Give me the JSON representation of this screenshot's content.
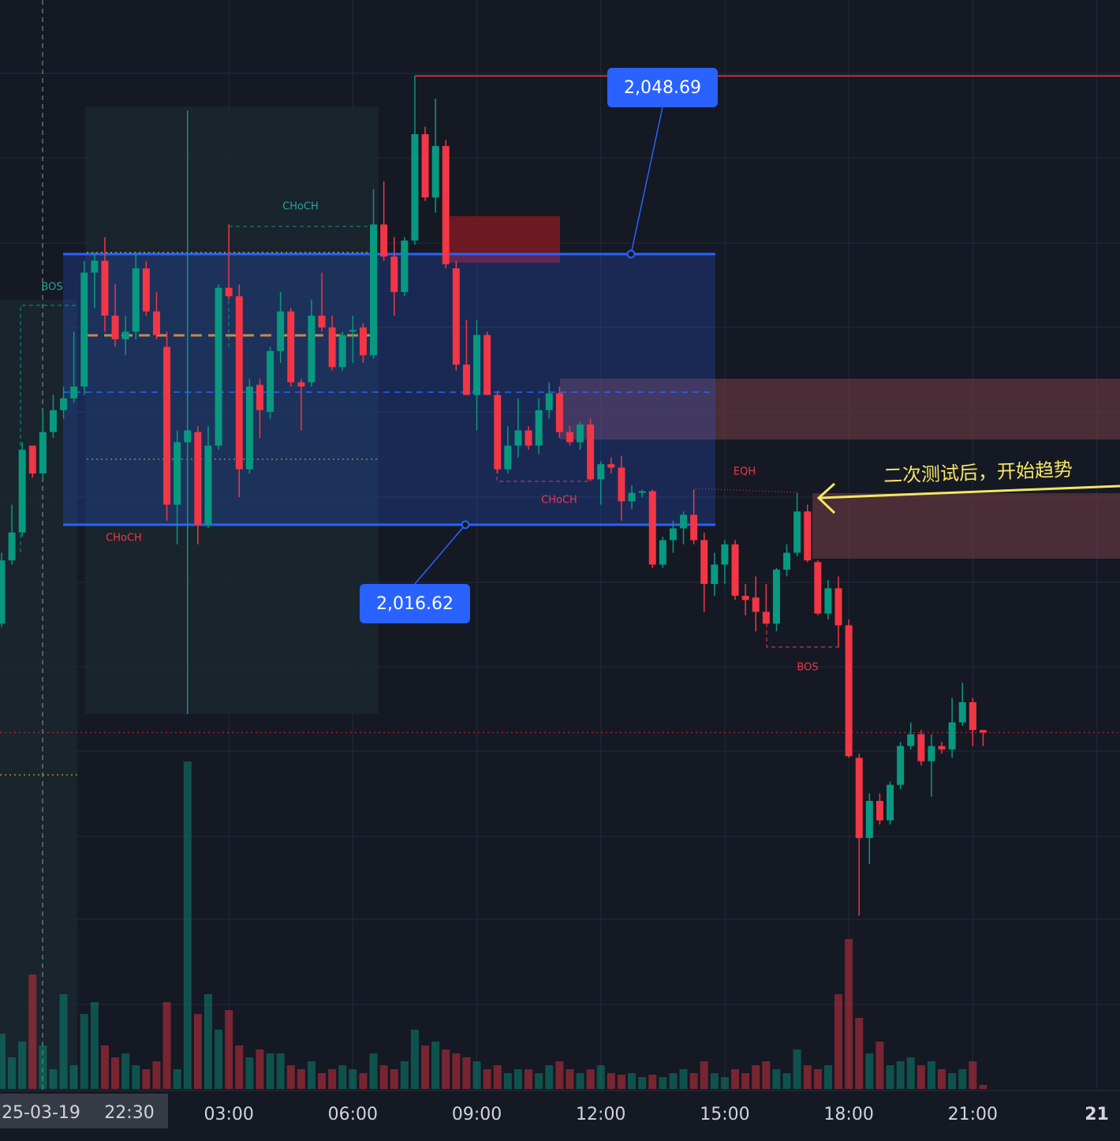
{
  "chart_data": {
    "type": "candlestick",
    "ohlc": [
      [
        2004.9,
        2013.3,
        2004.5,
        2012.4
      ],
      [
        2012.4,
        2019.0,
        2011.9,
        2015.7
      ],
      [
        2015.7,
        2026.4,
        2015.2,
        2025.5
      ],
      [
        2026.0,
        2026.0,
        2022.2,
        2022.7
      ],
      [
        2022.7,
        2030.2,
        2021.8,
        2027.6
      ],
      [
        2027.6,
        2032.0,
        2026.9,
        2030.2
      ],
      [
        2030.2,
        2033.0,
        2029.2,
        2031.6
      ],
      [
        2031.6,
        2039.5,
        2031.1,
        2033.0
      ],
      [
        2033.0,
        2047.9,
        2032.0,
        2046.5
      ],
      [
        2046.5,
        2048.9,
        2042.3,
        2047.9
      ],
      [
        2047.9,
        2050.7,
        2039.5,
        2041.4
      ],
      [
        2041.4,
        2045.1,
        2037.7,
        2038.6
      ],
      [
        2038.6,
        2041.4,
        2036.7,
        2039.5
      ],
      [
        2039.5,
        2048.9,
        2038.6,
        2047.0
      ],
      [
        2047.0,
        2047.9,
        2041.4,
        2041.9
      ],
      [
        2041.9,
        2044.2,
        2038.6,
        2039.1
      ],
      [
        2037.7,
        2039.5,
        2017.1,
        2019.0
      ],
      [
        2019.0,
        2027.8,
        2014.3,
        2026.4
      ],
      [
        2026.4,
        2065.7,
        1994.2,
        2027.8
      ],
      [
        2027.6,
        2028.3,
        2014.3,
        2016.6
      ],
      [
        2016.6,
        2028.3,
        2016.2,
        2026.0
      ],
      [
        2026.0,
        2045.1,
        2025.5,
        2044.7
      ],
      [
        2044.7,
        2052.2,
        2043.3,
        2043.7
      ],
      [
        2043.7,
        2045.1,
        2019.9,
        2023.2
      ],
      [
        2023.2,
        2033.9,
        2022.7,
        2033.0
      ],
      [
        2033.2,
        2033.9,
        2026.9,
        2030.2
      ],
      [
        2030.0,
        2037.7,
        2029.2,
        2037.2
      ],
      [
        2037.2,
        2044.2,
        2035.8,
        2041.9
      ],
      [
        2041.9,
        2042.3,
        2033.0,
        2033.5
      ],
      [
        2033.5,
        2033.9,
        2027.8,
        2033.0
      ],
      [
        2033.5,
        2043.3,
        2033.0,
        2041.4
      ],
      [
        2041.4,
        2046.5,
        2039.5,
        2040.0
      ],
      [
        2040.0,
        2041.4,
        2034.9,
        2035.3
      ],
      [
        2035.3,
        2039.5,
        2034.9,
        2039.1
      ],
      [
        2039.5,
        2041.4,
        2035.8,
        2039.7
      ],
      [
        2040.0,
        2040.5,
        2035.8,
        2036.7
      ],
      [
        2036.7,
        2056.4,
        2036.3,
        2052.2
      ],
      [
        2052.2,
        2057.3,
        2047.9,
        2048.4
      ],
      [
        2048.4,
        2050.7,
        2041.4,
        2044.2
      ],
      [
        2044.2,
        2050.7,
        2043.7,
        2050.3
      ],
      [
        2050.3,
        2069.8,
        2049.8,
        2062.9
      ],
      [
        2062.9,
        2063.8,
        2055.0,
        2055.4
      ],
      [
        2055.4,
        2067.1,
        2053.6,
        2061.5
      ],
      [
        2061.5,
        2062.2,
        2047.0,
        2047.5
      ],
      [
        2047.0,
        2047.9,
        2034.9,
        2035.6
      ],
      [
        2035.6,
        2040.9,
        2032.0,
        2032.0
      ],
      [
        2032.0,
        2040.9,
        2027.8,
        2039.1
      ],
      [
        2039.1,
        2039.5,
        2032.0,
        2032.0
      ],
      [
        2032.0,
        2032.5,
        2022.7,
        2023.2
      ],
      [
        2023.2,
        2028.3,
        2022.7,
        2026.0
      ],
      [
        2026.0,
        2031.6,
        2024.6,
        2027.8
      ],
      [
        2027.8,
        2028.3,
        2025.5,
        2026.0
      ],
      [
        2026.0,
        2031.6,
        2025.0,
        2030.2
      ],
      [
        2030.2,
        2033.5,
        2029.2,
        2032.2
      ],
      [
        2032.2,
        2033.0,
        2026.9,
        2027.6
      ],
      [
        2027.6,
        2028.3,
        2026.0,
        2026.4
      ],
      [
        2026.4,
        2028.8,
        2025.5,
        2028.5
      ],
      [
        2028.5,
        2029.2,
        2021.8,
        2022.0
      ],
      [
        2022.0,
        2024.1,
        2019.0,
        2023.8
      ],
      [
        2023.8,
        2024.6,
        2022.7,
        2023.4
      ],
      [
        2023.4,
        2024.8,
        2017.1,
        2019.4
      ],
      [
        2019.4,
        2021.3,
        2018.5,
        2020.4
      ],
      [
        2020.4,
        2020.8,
        2019.9,
        2020.6
      ],
      [
        2020.6,
        2020.8,
        2011.5,
        2011.9
      ],
      [
        2011.9,
        2015.2,
        2011.5,
        2014.8
      ],
      [
        2014.8,
        2017.1,
        2013.3,
        2016.2
      ],
      [
        2016.2,
        2018.2,
        2014.3,
        2017.8
      ],
      [
        2017.8,
        2020.8,
        2014.3,
        2014.8
      ],
      [
        2014.8,
        2015.7,
        2006.3,
        2009.6
      ],
      [
        2009.6,
        2013.3,
        2008.2,
        2011.9
      ],
      [
        2011.9,
        2014.8,
        2009.6,
        2014.3
      ],
      [
        2014.3,
        2014.8,
        2007.7,
        2008.2
      ],
      [
        2008.2,
        2009.6,
        2005.9,
        2007.7
      ],
      [
        2008.0,
        2010.5,
        2004.0,
        2006.3
      ],
      [
        2006.3,
        2009.6,
        2004.9,
        2004.9
      ],
      [
        2004.9,
        2011.5,
        2004.0,
        2011.3
      ],
      [
        2011.3,
        2014.3,
        2010.5,
        2013.3
      ],
      [
        2013.3,
        2020.4,
        2012.9,
        2018.2
      ],
      [
        2018.2,
        2019.0,
        2012.2,
        2012.4
      ],
      [
        2012.2,
        2012.4,
        2005.9,
        2006.1
      ],
      [
        2006.1,
        2010.1,
        2005.4,
        2009.1
      ],
      [
        2009.1,
        2010.5,
        2002.1,
        2004.7
      ],
      [
        2004.7,
        2005.4,
        1989.0,
        1989.2
      ],
      [
        1989.0,
        1989.5,
        1970.3,
        1979.5
      ],
      [
        1979.5,
        1984.8,
        1976.4,
        1983.9
      ],
      [
        1983.9,
        1984.8,
        1981.1,
        1981.6
      ],
      [
        1981.6,
        1986.2,
        1981.1,
        1985.8
      ],
      [
        1985.8,
        1990.9,
        1985.3,
        1990.4
      ],
      [
        1990.4,
        1993.2,
        1990.0,
        1991.8
      ],
      [
        1991.8,
        1992.3,
        1988.1,
        1988.6
      ],
      [
        1988.6,
        1991.8,
        1984.4,
        1990.4
      ],
      [
        1990.4,
        1990.9,
        1989.5,
        1990.0
      ],
      [
        1990.0,
        1996.1,
        1989.0,
        1993.2
      ],
      [
        1993.2,
        1997.9,
        1992.8,
        1995.6
      ],
      [
        1995.6,
        1996.1,
        1990.4,
        1992.3
      ],
      [
        1992.3,
        1992.3,
        1990.4,
        1992.0
      ]
    ],
    "volume": [
      70,
      40,
      60,
      145,
      55,
      25,
      120,
      30,
      95,
      110,
      55,
      40,
      45,
      30,
      25,
      35,
      110,
      25,
      415,
      95,
      120,
      75,
      100,
      55,
      40,
      50,
      45,
      45,
      30,
      25,
      35,
      20,
      25,
      30,
      25,
      20,
      45,
      30,
      25,
      35,
      75,
      55,
      60,
      50,
      45,
      40,
      35,
      25,
      30,
      20,
      25,
      25,
      20,
      30,
      35,
      25,
      20,
      25,
      30,
      20,
      18,
      20,
      15,
      18,
      15,
      20,
      25,
      20,
      35,
      20,
      15,
      25,
      20,
      30,
      35,
      25,
      20,
      50,
      30,
      25,
      30,
      120,
      190,
      90,
      45,
      60,
      30,
      35,
      40,
      30,
      35,
      25,
      20,
      25,
      35,
      5
    ],
    "up_color": "#089981",
    "down_color": "#f23645",
    "xlim": [
      -0.15,
      108.25
    ],
    "ylim": [
      1943.6,
      2078.8
    ],
    "vlim": [
      0,
      1000
    ],
    "xticks": [
      {
        "value": 22,
        "label": "03:00"
      },
      {
        "value": 34,
        "label": "06:00"
      },
      {
        "value": 46,
        "label": "09:00"
      },
      {
        "value": 58,
        "label": "12:00"
      },
      {
        "value": 70,
        "label": "15:00"
      },
      {
        "value": 82,
        "label": "18:00"
      },
      {
        "value": 94,
        "label": "21:00"
      },
      {
        "value": 106,
        "label": "21"
      }
    ],
    "crosshair_label": [
      "25-03-19",
      "22:30"
    ],
    "range_box": {
      "top": {
        "value": 2048.69,
        "label": "2,048.69"
      },
      "bottom": {
        "value": 2016.62,
        "label": "2,016.62"
      }
    },
    "annotations": [
      "CHoCH",
      "CHoCH",
      "CHoCH",
      "BOS",
      "BOS",
      "EQH",
      "二次测试后，开始趋势"
    ]
  }
}
